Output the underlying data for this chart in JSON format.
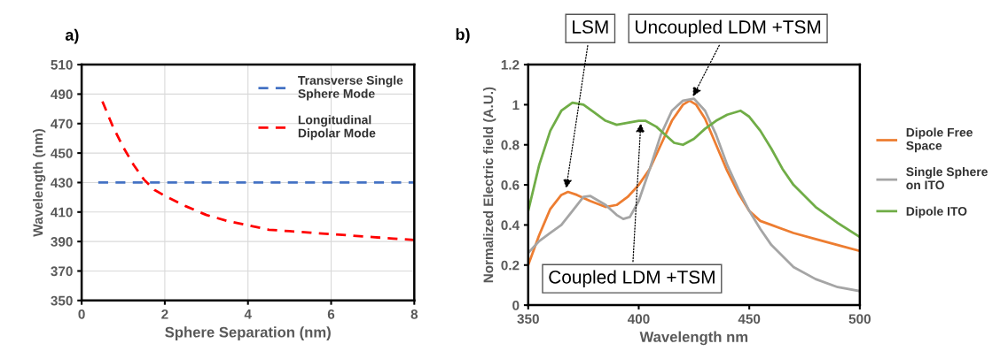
{
  "chart_data": [
    {
      "type": "line",
      "xlabel": "Sphere Separation (nm)",
      "ylabel": "Wavelength (nm)",
      "xlim": [
        0,
        8
      ],
      "ylim": [
        350,
        510
      ],
      "xticks": [
        0,
        2,
        4,
        6,
        8
      ],
      "yticks": [
        350,
        370,
        390,
        410,
        430,
        450,
        470,
        490,
        510
      ],
      "grid": true,
      "legend": "top right",
      "line_style": "dashed",
      "annotations": [
        "a)"
      ],
      "series": [
        {
          "name": "Transverse Single\nSphere Mode",
          "color": "#4472c4",
          "x": [
            0.4,
            8
          ],
          "values": [
            430,
            430
          ]
        },
        {
          "name": "Longitudinal\nDipolar Mode",
          "color": "#ff0000",
          "x": [
            0.5,
            0.75,
            1,
            1.25,
            1.5,
            1.75,
            2,
            2.5,
            3,
            3.5,
            4,
            4.5,
            5,
            5.5,
            6,
            6.5,
            7,
            7.5,
            8
          ],
          "values": [
            485,
            468,
            454,
            442,
            432,
            425,
            421,
            414,
            408,
            404,
            401,
            398,
            397,
            396,
            395,
            394,
            393,
            392,
            391
          ]
        }
      ]
    },
    {
      "type": "line",
      "xlabel": "Wavelength nm",
      "ylabel": "Normalized Electric field (A.U.)",
      "xlim": [
        350,
        500
      ],
      "ylim": [
        0,
        1.2
      ],
      "xticks": [
        350,
        400,
        450,
        500
      ],
      "yticks": [
        0,
        0.2,
        0.4,
        0.6,
        0.8,
        1,
        1.2
      ],
      "legend": "right",
      "line_style": "solid",
      "annotations": [
        "b)",
        {
          "text": "LSM",
          "x": 367,
          "y": 0.57
        },
        {
          "text": "Uncoupled LDM +TSM",
          "x": 424,
          "y": 1.03
        },
        {
          "text": "Coupled LDM +TSM",
          "x": 401,
          "y": 0.92
        }
      ],
      "series": [
        {
          "name": "Dipole Free\nSpace",
          "color": "#ed7d31",
          "x": [
            350,
            355,
            360,
            365,
            368,
            372,
            378,
            385,
            390,
            395,
            400,
            405,
            410,
            415,
            420,
            423,
            426,
            430,
            435,
            440,
            445,
            450,
            455,
            460,
            470,
            480,
            490,
            500
          ],
          "values": [
            0.2,
            0.35,
            0.48,
            0.55,
            0.565,
            0.55,
            0.52,
            0.49,
            0.5,
            0.54,
            0.6,
            0.68,
            0.8,
            0.92,
            1.0,
            1.02,
            1.0,
            0.93,
            0.8,
            0.67,
            0.56,
            0.47,
            0.42,
            0.4,
            0.36,
            0.33,
            0.3,
            0.27
          ]
        },
        {
          "name": "Single Sphere\non ITO",
          "color": "#a5a5a5",
          "x": [
            350,
            355,
            360,
            365,
            370,
            375,
            378,
            385,
            390,
            393,
            396,
            400,
            405,
            410,
            415,
            420,
            425,
            430,
            435,
            440,
            445,
            450,
            455,
            460,
            470,
            480,
            490,
            500
          ],
          "values": [
            0.26,
            0.32,
            0.36,
            0.4,
            0.47,
            0.54,
            0.545,
            0.5,
            0.45,
            0.43,
            0.44,
            0.52,
            0.68,
            0.85,
            0.97,
            1.02,
            1.03,
            0.97,
            0.85,
            0.7,
            0.58,
            0.47,
            0.38,
            0.3,
            0.19,
            0.13,
            0.09,
            0.07
          ]
        },
        {
          "name": "Dipole ITO",
          "color": "#70ad47",
          "x": [
            350,
            355,
            360,
            365,
            370,
            375,
            380,
            385,
            390,
            395,
            400,
            403,
            408,
            412,
            416,
            420,
            425,
            430,
            435,
            440,
            446,
            450,
            455,
            460,
            465,
            470,
            480,
            490,
            500
          ],
          "values": [
            0.47,
            0.7,
            0.87,
            0.97,
            1.01,
            1.0,
            0.96,
            0.92,
            0.9,
            0.91,
            0.92,
            0.92,
            0.89,
            0.85,
            0.81,
            0.8,
            0.83,
            0.88,
            0.92,
            0.95,
            0.97,
            0.94,
            0.87,
            0.78,
            0.68,
            0.6,
            0.49,
            0.41,
            0.34
          ]
        }
      ]
    }
  ]
}
